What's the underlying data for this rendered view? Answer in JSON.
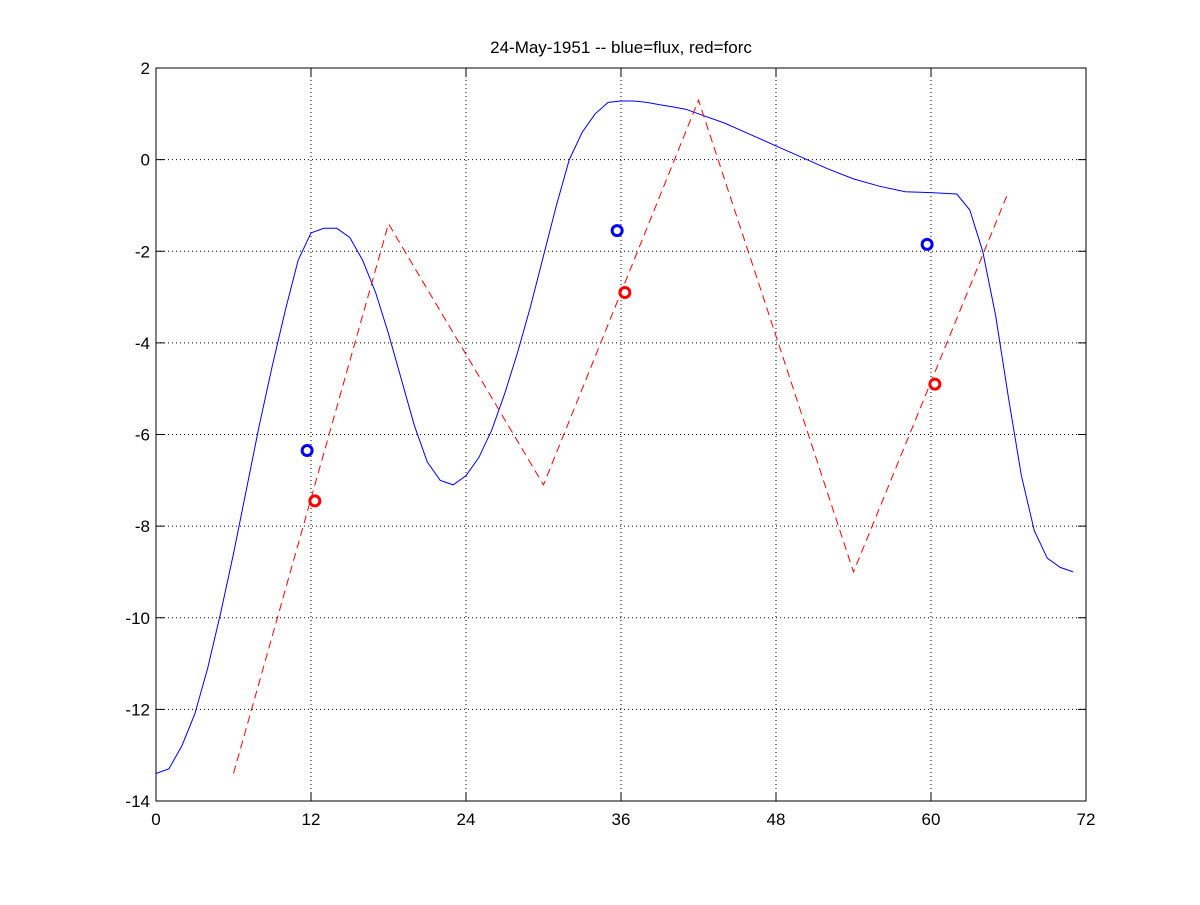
{
  "chart_data": {
    "type": "line",
    "title": "24-May-1951 -- blue=flux, red=forc",
    "xlabel": "",
    "ylabel": "",
    "xlim": [
      0,
      72
    ],
    "ylim": [
      -14,
      2
    ],
    "xticks": [
      0,
      12,
      24,
      36,
      48,
      60,
      72
    ],
    "yticks": [
      2,
      0,
      -2,
      -4,
      -6,
      -8,
      -10,
      -12,
      -14
    ],
    "grid": true,
    "series": [
      {
        "color": "#0000ff",
        "style": "solid",
        "x": [
          0,
          1,
          2,
          3,
          4,
          5,
          6,
          7,
          8,
          9,
          10,
          11,
          12,
          13,
          14,
          15,
          16,
          17,
          18,
          19,
          20,
          21,
          22,
          23,
          24,
          25,
          26,
          27,
          28,
          29,
          30,
          31,
          32,
          33,
          34,
          35,
          36,
          37,
          38,
          39,
          40,
          41,
          42,
          44,
          46,
          48,
          50,
          52,
          54,
          56,
          58,
          60,
          62,
          63,
          64,
          65,
          66,
          67,
          68,
          69,
          70,
          71
        ],
        "y": [
          -13.4,
          -13.3,
          -12.8,
          -12.1,
          -11.1,
          -9.9,
          -8.6,
          -7.2,
          -5.8,
          -4.5,
          -3.3,
          -2.2,
          -1.6,
          -1.5,
          -1.5,
          -1.7,
          -2.2,
          -2.9,
          -3.8,
          -4.8,
          -5.8,
          -6.6,
          -7.0,
          -7.1,
          -6.9,
          -6.5,
          -5.9,
          -5.1,
          -4.2,
          -3.2,
          -2.1,
          -1.0,
          0.0,
          0.6,
          1.0,
          1.25,
          1.28,
          1.28,
          1.25,
          1.2,
          1.15,
          1.1,
          1.0,
          0.8,
          0.55,
          0.3,
          0.05,
          -0.2,
          -0.42,
          -0.58,
          -0.7,
          -0.72,
          -0.75,
          -1.1,
          -2.0,
          -3.4,
          -5.2,
          -6.9,
          -8.1,
          -8.7,
          -8.9,
          -9.0
        ],
        "markers": [
          {
            "x": 11.7,
            "y": -6.35
          },
          {
            "x": 35.7,
            "y": -1.55
          },
          {
            "x": 59.7,
            "y": -1.85
          }
        ]
      },
      {
        "color": "#ff0000",
        "style": "dashed",
        "x": [
          6,
          18,
          30,
          42,
          54,
          66
        ],
        "y": [
          -13.4,
          -1.4,
          -7.1,
          1.3,
          -9.0,
          -0.7
        ],
        "markers": [
          {
            "x": 12.3,
            "y": -7.45
          },
          {
            "x": 36.3,
            "y": -2.9
          },
          {
            "x": 60.3,
            "y": -4.9
          }
        ]
      }
    ]
  }
}
